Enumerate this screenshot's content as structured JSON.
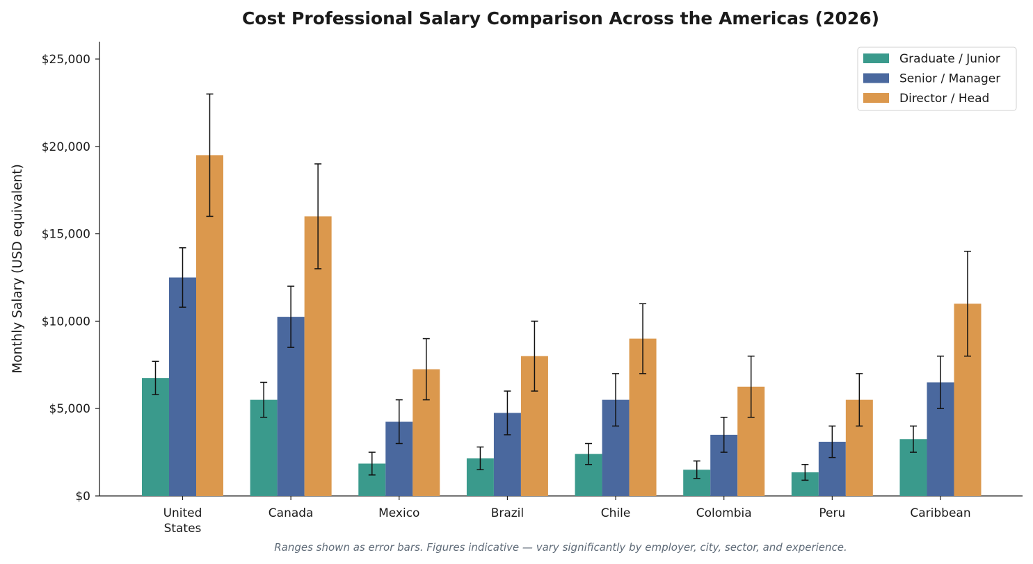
{
  "chart_data": {
    "type": "bar",
    "title": "Cost Professional Salary Comparison Across the Americas (2026)",
    "xlabel": "",
    "ylabel": "Monthly Salary (USD equivalent)",
    "categories": [
      "United States",
      "Canada",
      "Mexico",
      "Brazil",
      "Chile",
      "Colombia",
      "Peru",
      "Caribbean"
    ],
    "series": [
      {
        "name": "Graduate / Junior",
        "color": "#3a9a8c",
        "values": [
          6750,
          5500,
          1850,
          2150,
          2400,
          1500,
          1350,
          3250
        ],
        "low": [
          5800,
          4500,
          1200,
          1500,
          1800,
          1000,
          900,
          2500
        ],
        "high": [
          7700,
          6500,
          2500,
          2800,
          3000,
          2000,
          1800,
          4000
        ]
      },
      {
        "name": "Senior / Manager",
        "color": "#4a689e",
        "values": [
          12500,
          10250,
          4250,
          4750,
          5500,
          3500,
          3100,
          6500
        ],
        "low": [
          10800,
          8500,
          3000,
          3500,
          4000,
          2500,
          2200,
          5000
        ],
        "high": [
          14200,
          12000,
          5500,
          6000,
          7000,
          4500,
          4000,
          8000
        ]
      },
      {
        "name": "Director / Head",
        "color": "#db984d",
        "values": [
          19500,
          16000,
          7250,
          8000,
          9000,
          6250,
          5500,
          11000
        ],
        "low": [
          16000,
          13000,
          5500,
          6000,
          7000,
          4500,
          4000,
          8000
        ],
        "high": [
          23000,
          19000,
          9000,
          10000,
          11000,
          8000,
          7000,
          14000
        ]
      }
    ],
    "ylim": [
      0,
      26000
    ],
    "yticks": [
      {
        "value": 0,
        "label": "$0"
      },
      {
        "value": 5000,
        "label": "$5,000"
      },
      {
        "value": 10000,
        "label": "$10,000"
      },
      {
        "value": 15000,
        "label": "$15,000"
      },
      {
        "value": 20000,
        "label": "$20,000"
      },
      {
        "value": 25000,
        "label": "$25,000"
      }
    ],
    "grid": false,
    "legend_position": "top-right",
    "error_bars": true,
    "footnote": "Ranges shown as error bars. Figures indicative — vary significantly by employer, city, sector, and experience."
  }
}
